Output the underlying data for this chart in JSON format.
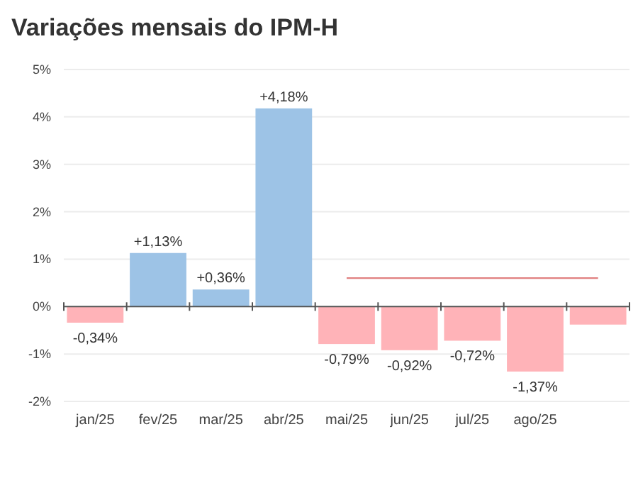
{
  "chart_data": {
    "type": "bar",
    "title": "Variações mensais do IPM-H",
    "categories": [
      "jan/25",
      "fev/25",
      "mar/25",
      "abr/25",
      "mai/25",
      "jun/25",
      "jul/25",
      "ago/25",
      null
    ],
    "series": [
      {
        "colors": [
          "#ffb3b8",
          "#9dc3e6",
          "#9dc3e6",
          "#9dc3e6",
          "#ffb3b8",
          "#ffb3b8",
          "#ffb3b8",
          "#ffb3b8",
          "#ffb3b8"
        ],
        "values": [
          -0.34,
          1.13,
          0.36,
          4.18,
          -0.79,
          -0.92,
          -0.72,
          -1.37,
          -0.38
        ],
        "value_labels": [
          "-0,34%",
          "+1,13%",
          "+0,36%",
          "+4,18%",
          "-0,79%",
          "-0,92%",
          "-0,72%",
          "-1,37%",
          null
        ]
      },
      {
        "type": "line",
        "color": "#e08080",
        "values": [
          null,
          null,
          null,
          null,
          0.6,
          0.6,
          0.6,
          0.6,
          0.6
        ]
      }
    ],
    "ylim": [
      -2,
      5
    ],
    "yticks": [
      {
        "value": -2,
        "label": "-2%"
      },
      {
        "value": -1,
        "label": "-1%"
      },
      {
        "value": 0,
        "label": "0%"
      },
      {
        "value": 1,
        "label": "1%"
      },
      {
        "value": 2,
        "label": "2%"
      },
      {
        "value": 3,
        "label": "3%"
      },
      {
        "value": 4,
        "label": "4%"
      },
      {
        "value": 5,
        "label": "5%"
      }
    ],
    "grid": "y"
  }
}
